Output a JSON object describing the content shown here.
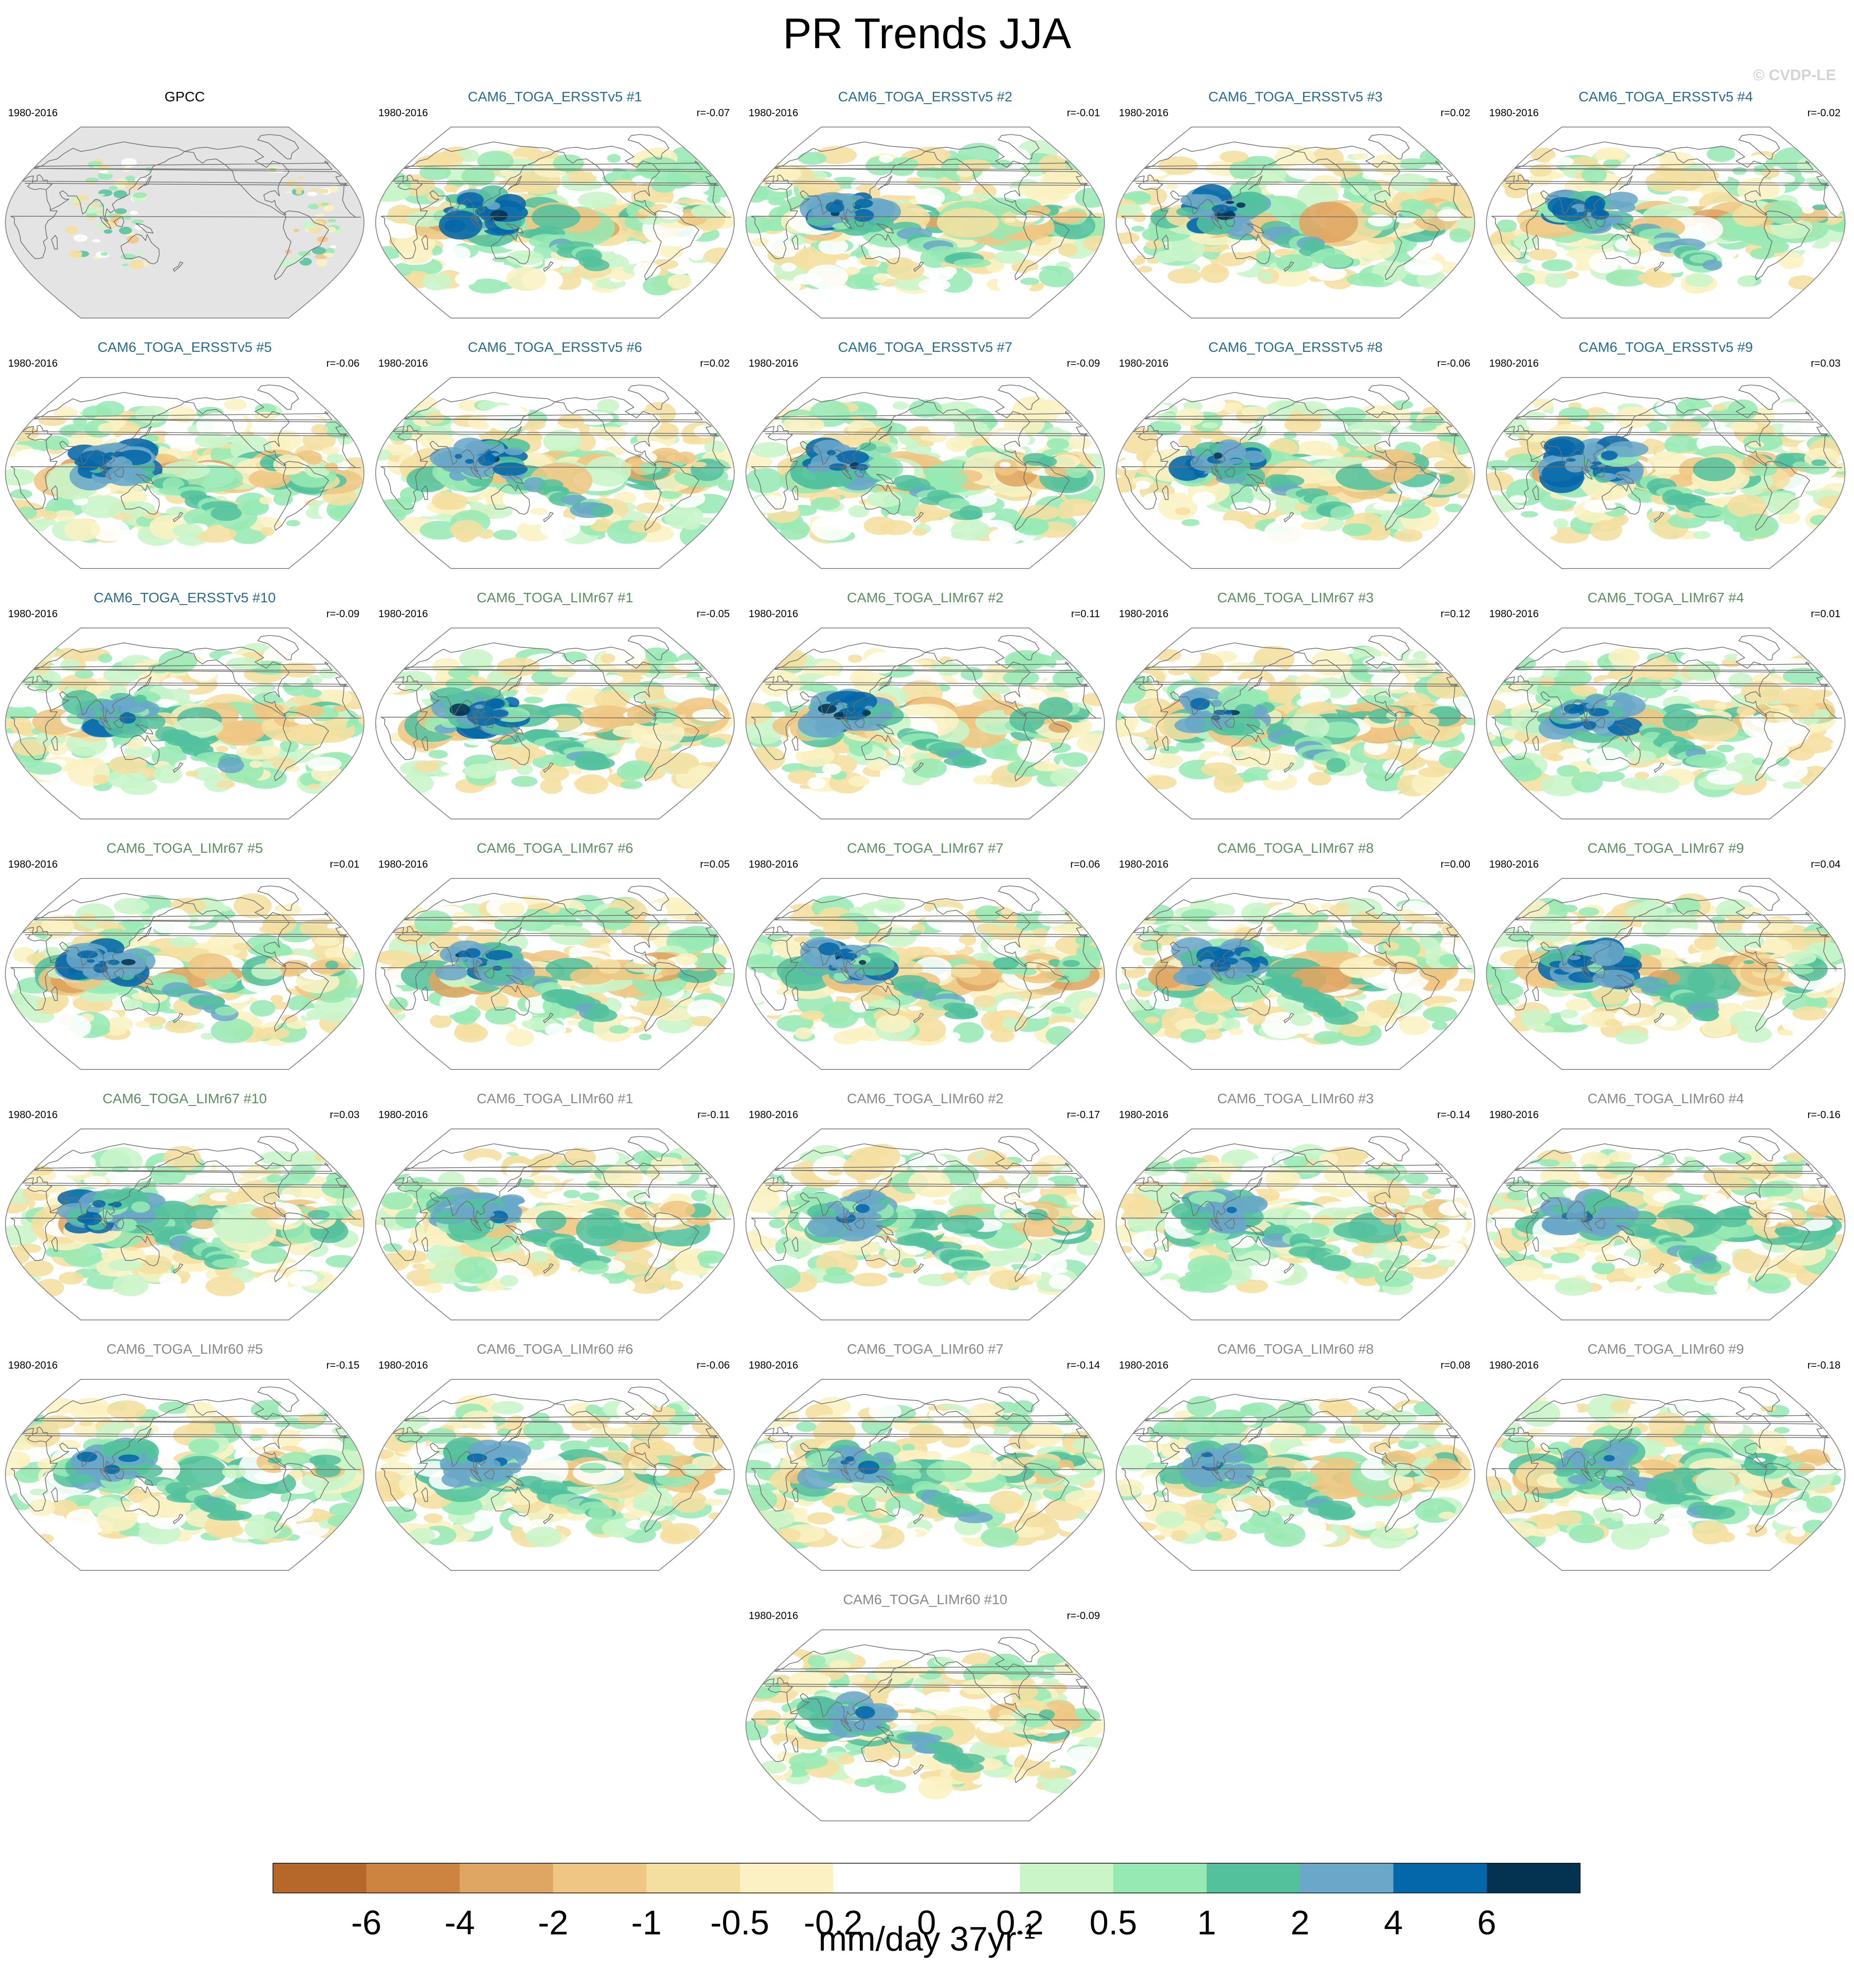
{
  "page": {
    "title": "PR Trends JJA",
    "credit": "© CVDP-LE",
    "colors": {
      "land": "#e4e4e4",
      "coast": "#6e6e6e",
      "outline": "#8c8c8c",
      "title_obs": "#000000",
      "title_ersst": "#2a6b8a",
      "title_limr67": "#5e8c61",
      "title_limr60": "#888888"
    }
  },
  "chart_data": {
    "type": "heatmap",
    "title": "PR Trends JJA",
    "projection": "robinson",
    "period": "1980-2016",
    "panels": [
      {
        "title": "GPCC",
        "period": "1980-2016",
        "r": "",
        "group": "obs",
        "seed": 1
      },
      {
        "title": "CAM6_TOGA_ERSSTv5 #1",
        "period": "1980-2016",
        "r": "r=-0.07",
        "group": "ersst",
        "seed": 11
      },
      {
        "title": "CAM6_TOGA_ERSSTv5 #2",
        "period": "1980-2016",
        "r": "r=-0.01",
        "group": "ersst",
        "seed": 12
      },
      {
        "title": "CAM6_TOGA_ERSSTv5 #3",
        "period": "1980-2016",
        "r": "r=0.02",
        "group": "ersst",
        "seed": 13
      },
      {
        "title": "CAM6_TOGA_ERSSTv5 #4",
        "period": "1980-2016",
        "r": "r=-0.02",
        "group": "ersst",
        "seed": 14
      },
      {
        "title": "CAM6_TOGA_ERSSTv5 #5",
        "period": "1980-2016",
        "r": "r=-0.06",
        "group": "ersst",
        "seed": 15
      },
      {
        "title": "CAM6_TOGA_ERSSTv5 #6",
        "period": "1980-2016",
        "r": "r=0.02",
        "group": "ersst",
        "seed": 16
      },
      {
        "title": "CAM6_TOGA_ERSSTv5 #7",
        "period": "1980-2016",
        "r": "r=-0.09",
        "group": "ersst",
        "seed": 17
      },
      {
        "title": "CAM6_TOGA_ERSSTv5 #8",
        "period": "1980-2016",
        "r": "r=-0.06",
        "group": "ersst",
        "seed": 18
      },
      {
        "title": "CAM6_TOGA_ERSSTv5 #9",
        "period": "1980-2016",
        "r": "r=0.03",
        "group": "ersst",
        "seed": 19
      },
      {
        "title": "CAM6_TOGA_ERSSTv5 #10",
        "period": "1980-2016",
        "r": "r=-0.09",
        "group": "ersst",
        "seed": 20
      },
      {
        "title": "CAM6_TOGA_LIMr67 #1",
        "period": "1980-2016",
        "r": "r=-0.05",
        "group": "limr67",
        "seed": 21
      },
      {
        "title": "CAM6_TOGA_LIMr67 #2",
        "period": "1980-2016",
        "r": "r=0.11",
        "group": "limr67",
        "seed": 22
      },
      {
        "title": "CAM6_TOGA_LIMr67 #3",
        "period": "1980-2016",
        "r": "r=0.12",
        "group": "limr67",
        "seed": 23
      },
      {
        "title": "CAM6_TOGA_LIMr67 #4",
        "period": "1980-2016",
        "r": "r=0.01",
        "group": "limr67",
        "seed": 24
      },
      {
        "title": "CAM6_TOGA_LIMr67 #5",
        "period": "1980-2016",
        "r": "r=0.01",
        "group": "limr67",
        "seed": 25
      },
      {
        "title": "CAM6_TOGA_LIMr67 #6",
        "period": "1980-2016",
        "r": "r=0.05",
        "group": "limr67",
        "seed": 26
      },
      {
        "title": "CAM6_TOGA_LIMr67 #7",
        "period": "1980-2016",
        "r": "r=0.06",
        "group": "limr67",
        "seed": 27
      },
      {
        "title": "CAM6_TOGA_LIMr67 #8",
        "period": "1980-2016",
        "r": "r=0.00",
        "group": "limr67",
        "seed": 28
      },
      {
        "title": "CAM6_TOGA_LIMr67 #9",
        "period": "1980-2016",
        "r": "r=0.04",
        "group": "limr67",
        "seed": 29
      },
      {
        "title": "CAM6_TOGA_LIMr67 #10",
        "period": "1980-2016",
        "r": "r=0.03",
        "group": "limr67",
        "seed": 30
      },
      {
        "title": "CAM6_TOGA_LIMr60 #1",
        "period": "1980-2016",
        "r": "r=-0.11",
        "group": "limr60",
        "seed": 31
      },
      {
        "title": "CAM6_TOGA_LIMr60 #2",
        "period": "1980-2016",
        "r": "r=-0.17",
        "group": "limr60",
        "seed": 32
      },
      {
        "title": "CAM6_TOGA_LIMr60 #3",
        "period": "1980-2016",
        "r": "r=-0.14",
        "group": "limr60",
        "seed": 33
      },
      {
        "title": "CAM6_TOGA_LIMr60 #4",
        "period": "1980-2016",
        "r": "r=-0.16",
        "group": "limr60",
        "seed": 34
      },
      {
        "title": "CAM6_TOGA_LIMr60 #5",
        "period": "1980-2016",
        "r": "r=-0.15",
        "group": "limr60",
        "seed": 35
      },
      {
        "title": "CAM6_TOGA_LIMr60 #6",
        "period": "1980-2016",
        "r": "r=-0.06",
        "group": "limr60",
        "seed": 36
      },
      {
        "title": "CAM6_TOGA_LIMr60 #7",
        "period": "1980-2016",
        "r": "r=-0.14",
        "group": "limr60",
        "seed": 37
      },
      {
        "title": "CAM6_TOGA_LIMr60 #8",
        "period": "1980-2016",
        "r": "r=0.08",
        "group": "limr60",
        "seed": 38
      },
      {
        "title": "CAM6_TOGA_LIMr60 #9",
        "period": "1980-2016",
        "r": "r=-0.18",
        "group": "limr60",
        "seed": 39
      },
      {
        "title": "CAM6_TOGA_LIMr60 #10",
        "period": "1980-2016",
        "r": "r=-0.09",
        "group": "limr60",
        "seed": 40
      }
    ],
    "colorbar": {
      "units": "mm/day 37yr",
      "units_exponent": "-1",
      "levels": [
        "-6",
        "-4",
        "-2",
        "-1",
        "-0.5",
        "-0.2",
        "0",
        "0.2",
        "0.5",
        "1",
        "2",
        "4",
        "6"
      ],
      "colors": [
        "#b5682a",
        "#cc8440",
        "#dfa562",
        "#efc683",
        "#f5dfa0",
        "#fbf1c3",
        "#ffffff",
        "#ffffff",
        "#caf5c9",
        "#97e9b4",
        "#54c19d",
        "#6aa7c8",
        "#0467a9",
        "#033351"
      ]
    }
  }
}
